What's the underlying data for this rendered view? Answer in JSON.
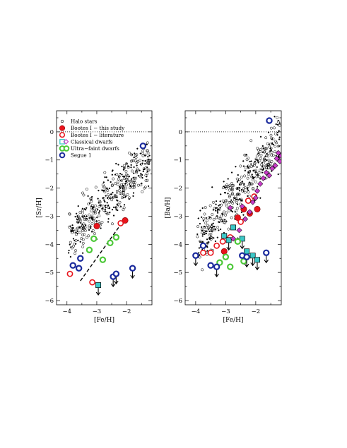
{
  "chart_data": [
    {
      "type": "scatter",
      "xlabel": "[Fe/H]",
      "ylabel": "[Sr/H]",
      "xlim": [
        -4.35,
        -1.15
      ],
      "ylim": [
        -6.15,
        0.75
      ],
      "xticks": [
        -4,
        -3,
        -2
      ],
      "yticks": [
        0,
        -1,
        -2,
        -3,
        -4,
        -5,
        -6
      ],
      "xtick_labels": [
        "−4",
        "−3",
        "−2"
      ],
      "ytick_labels": [
        "0",
        "−1",
        "−2",
        "−3",
        "−4",
        "−5",
        "−6"
      ],
      "reference_line_y": 0,
      "legend_position": "top-left",
      "legend": [
        {
          "label": "Halo stars",
          "marker": "small-open-circle",
          "color": "#000000"
        },
        {
          "label": "Bootes I − this study",
          "marker": "filled-circle",
          "color": "#e8141c"
        },
        {
          "label": "Bootes I − literature",
          "marker": "open-circle",
          "color": "#e8141c"
        },
        {
          "label": "Classical dwarfs",
          "marker": "square",
          "color": "#3cc8c8"
        },
        {
          "label": "Ultra−faint dwarfs",
          "marker": "thick-circle",
          "color": "#4cc838"
        },
        {
          "label": "Segue 1",
          "marker": "thick-circle",
          "color": "#1a2a9c"
        }
      ],
      "series": [
        {
          "name": "Bootes I − this study",
          "x": [
            -3.0,
            -2.05
          ],
          "y": [
            -3.35,
            -3.15
          ]
        },
        {
          "name": "Bootes I − literature",
          "x": [
            -3.9,
            -3.15,
            -2.2
          ],
          "y": [
            -5.05,
            -5.35,
            -3.25
          ]
        },
        {
          "name": "Classical dwarfs",
          "x": [
            -2.95
          ],
          "y": [
            -5.45
          ],
          "upper_limit": [
            true
          ]
        },
        {
          "name": "Ultra−faint dwarfs",
          "x": [
            -3.25,
            -3.1,
            -2.8,
            -2.55,
            -2.35
          ],
          "y": [
            -4.2,
            -3.8,
            -4.55,
            -3.95,
            -3.75
          ]
        },
        {
          "name": "Segue 1",
          "x": [
            -3.8,
            -3.6,
            -3.55,
            -2.45,
            -2.35,
            -1.8,
            -1.45
          ],
          "y": [
            -4.75,
            -4.85,
            -4.5,
            -5.15,
            -5.05,
            -4.85,
            -0.5
          ],
          "upper_limit": [
            false,
            false,
            false,
            true,
            true,
            true,
            false
          ]
        }
      ],
      "fit_line": {
        "style": "dashed",
        "x": [
          -3.55,
          -2.2
        ],
        "y": [
          -5.3,
          -3.3
        ]
      }
    },
    {
      "type": "scatter",
      "xlabel": "[Fe/H]",
      "ylabel": "[Ba/H]",
      "xlim": [
        -4.35,
        -1.15
      ],
      "ylim": [
        -6.15,
        0.75
      ],
      "xticks": [
        -4,
        -3,
        -2
      ],
      "yticks": [
        0,
        -1,
        -2,
        -3,
        -4,
        -5,
        -6
      ],
      "xtick_labels": [
        "−4",
        "−3",
        "−2"
      ],
      "ytick_labels": [
        "0",
        "−1",
        "−2",
        "−3",
        "−4",
        "−5",
        "−6"
      ],
      "reference_line_y": 0,
      "series": [
        {
          "name": "Bootes I − this study",
          "x": [
            -3.05,
            -2.6,
            -2.4,
            -2.2,
            -1.95
          ],
          "y": [
            -4.25,
            -3.05,
            -2.75,
            -2.9,
            -2.75
          ]
        },
        {
          "name": "Bootes I − literature",
          "x": [
            -3.75,
            -3.5,
            -3.3,
            -3.1,
            -2.85,
            -2.5,
            -2.25,
            -2.05
          ],
          "y": [
            -4.3,
            -4.3,
            -4.05,
            -3.9,
            -3.75,
            -3.2,
            -2.45,
            -2.3
          ]
        },
        {
          "name": "Classical dwarfs",
          "x": [
            -3.05,
            -2.9,
            -2.75,
            -2.45,
            -2.3,
            -2.1,
            -1.95
          ],
          "y": [
            -3.7,
            -3.85,
            -3.4,
            -3.8,
            -4.25,
            -4.4,
            -4.55
          ],
          "upper_limit": [
            false,
            true,
            false,
            true,
            false,
            true,
            true
          ]
        },
        {
          "name": "Classical dwarfs (diamonds)",
          "x": [
            -2.6,
            -2.35,
            -2.1,
            -1.95,
            -1.85,
            -1.75,
            -1.65,
            -1.55,
            -1.45,
            -1.35,
            -1.3,
            -1.25,
            -1.2,
            -1.15,
            -2.0,
            -2.2,
            -2.45,
            -2.55,
            -2.75,
            -2.85
          ],
          "y": [
            -3.85,
            -3.1,
            -2.5,
            -2.1,
            -1.85,
            -1.65,
            -1.45,
            -1.55,
            -1.3,
            -1.2,
            -0.95,
            -0.75,
            -1.05,
            -0.85,
            -2.35,
            -2.85,
            -2.65,
            -3.5,
            -3.8,
            -2.7
          ]
        },
        {
          "name": "Ultra−faint dwarfs",
          "x": [
            -3.2,
            -3.0,
            -2.85,
            -2.6,
            -2.4
          ],
          "y": [
            -4.65,
            -4.45,
            -4.8,
            -3.9,
            -4.6
          ]
        },
        {
          "name": "Segue 1",
          "x": [
            -4.0,
            -3.75,
            -3.5,
            -3.3,
            -2.45,
            -2.3,
            -1.65,
            -1.55
          ],
          "y": [
            -4.4,
            -4.05,
            -4.75,
            -4.8,
            -4.4,
            -4.45,
            -4.3,
            0.4
          ],
          "upper_limit": [
            true,
            false,
            false,
            true,
            false,
            true,
            true,
            false
          ]
        }
      ],
      "fit_line": null
    }
  ]
}
